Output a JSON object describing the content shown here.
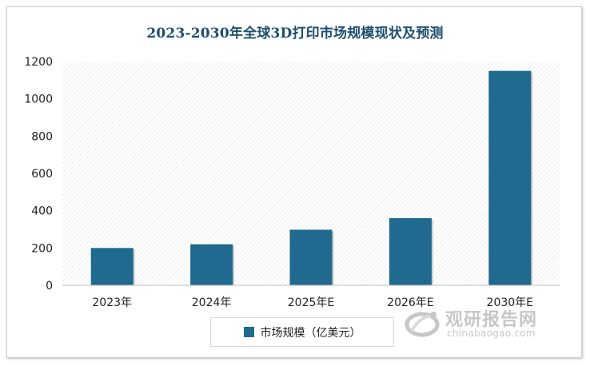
{
  "chart_data": {
    "type": "bar",
    "title": "2023-2030年全球3D打印市场规模现状及预测",
    "categories": [
      "2023年",
      "2024年",
      "2025年E",
      "2026年E",
      "2030年E"
    ],
    "series": [
      {
        "name": "市场规模（亿美元）",
        "values": [
          200,
          220,
          298,
          360,
          1150
        ]
      }
    ],
    "ylim": [
      0,
      1200
    ],
    "yticks": [
      0,
      200,
      400,
      600,
      800,
      1000,
      1200
    ],
    "ytick_labels": [
      "0",
      "200",
      "400",
      "600",
      "800",
      "1000",
      "1200"
    ],
    "xlabel": "",
    "ylabel": "",
    "grid": false,
    "plot_background": "diagonal hatch",
    "legend_position": "bottom",
    "bar_color": "#1f6a8e"
  },
  "watermark": {
    "name": "观研报告网",
    "url": "chinabaogao.com"
  }
}
